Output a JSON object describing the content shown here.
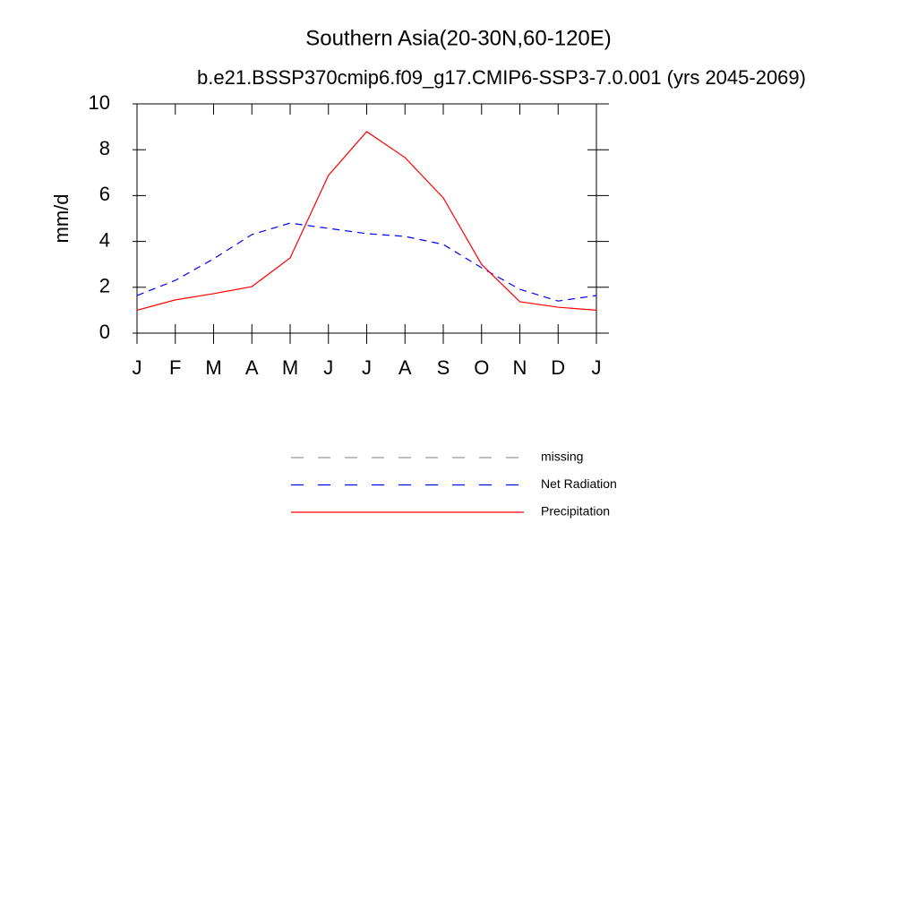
{
  "chart_data": {
    "type": "line",
    "title": "Southern Asia(20-30N,60-120E)",
    "subtitle": "b.e21.BSSP370cmip6.f09_g17.CMIP6-SSP3-7.0.001 (yrs 2045-2069)",
    "y_label": "mm/d",
    "categories": [
      "J",
      "F",
      "M",
      "A",
      "M",
      "J",
      "J",
      "A",
      "S",
      "O",
      "N",
      "D",
      "J"
    ],
    "series": [
      {
        "name": "missing",
        "color": "#999999",
        "dash": true,
        "values": [
          null,
          null,
          null,
          null,
          null,
          null,
          null,
          null,
          null,
          null,
          null,
          null,
          null
        ]
      },
      {
        "name": "Net Radiation",
        "color": "#0000ff",
        "dash": true,
        "values": [
          1.64,
          2.3,
          3.24,
          4.3,
          4.8,
          4.57,
          4.34,
          4.22,
          3.87,
          2.85,
          1.91,
          1.4,
          1.64
        ]
      },
      {
        "name": "Precipitation",
        "color": "#ff0000",
        "dash": false,
        "values": [
          1.0,
          1.45,
          1.72,
          2.03,
          3.28,
          6.88,
          8.79,
          7.66,
          5.9,
          3.0,
          1.37,
          1.13,
          1.0
        ]
      }
    ],
    "ylim": [
      0,
      10
    ],
    "yticks": [
      0,
      2,
      4,
      6,
      8,
      10
    ],
    "grid": false
  }
}
